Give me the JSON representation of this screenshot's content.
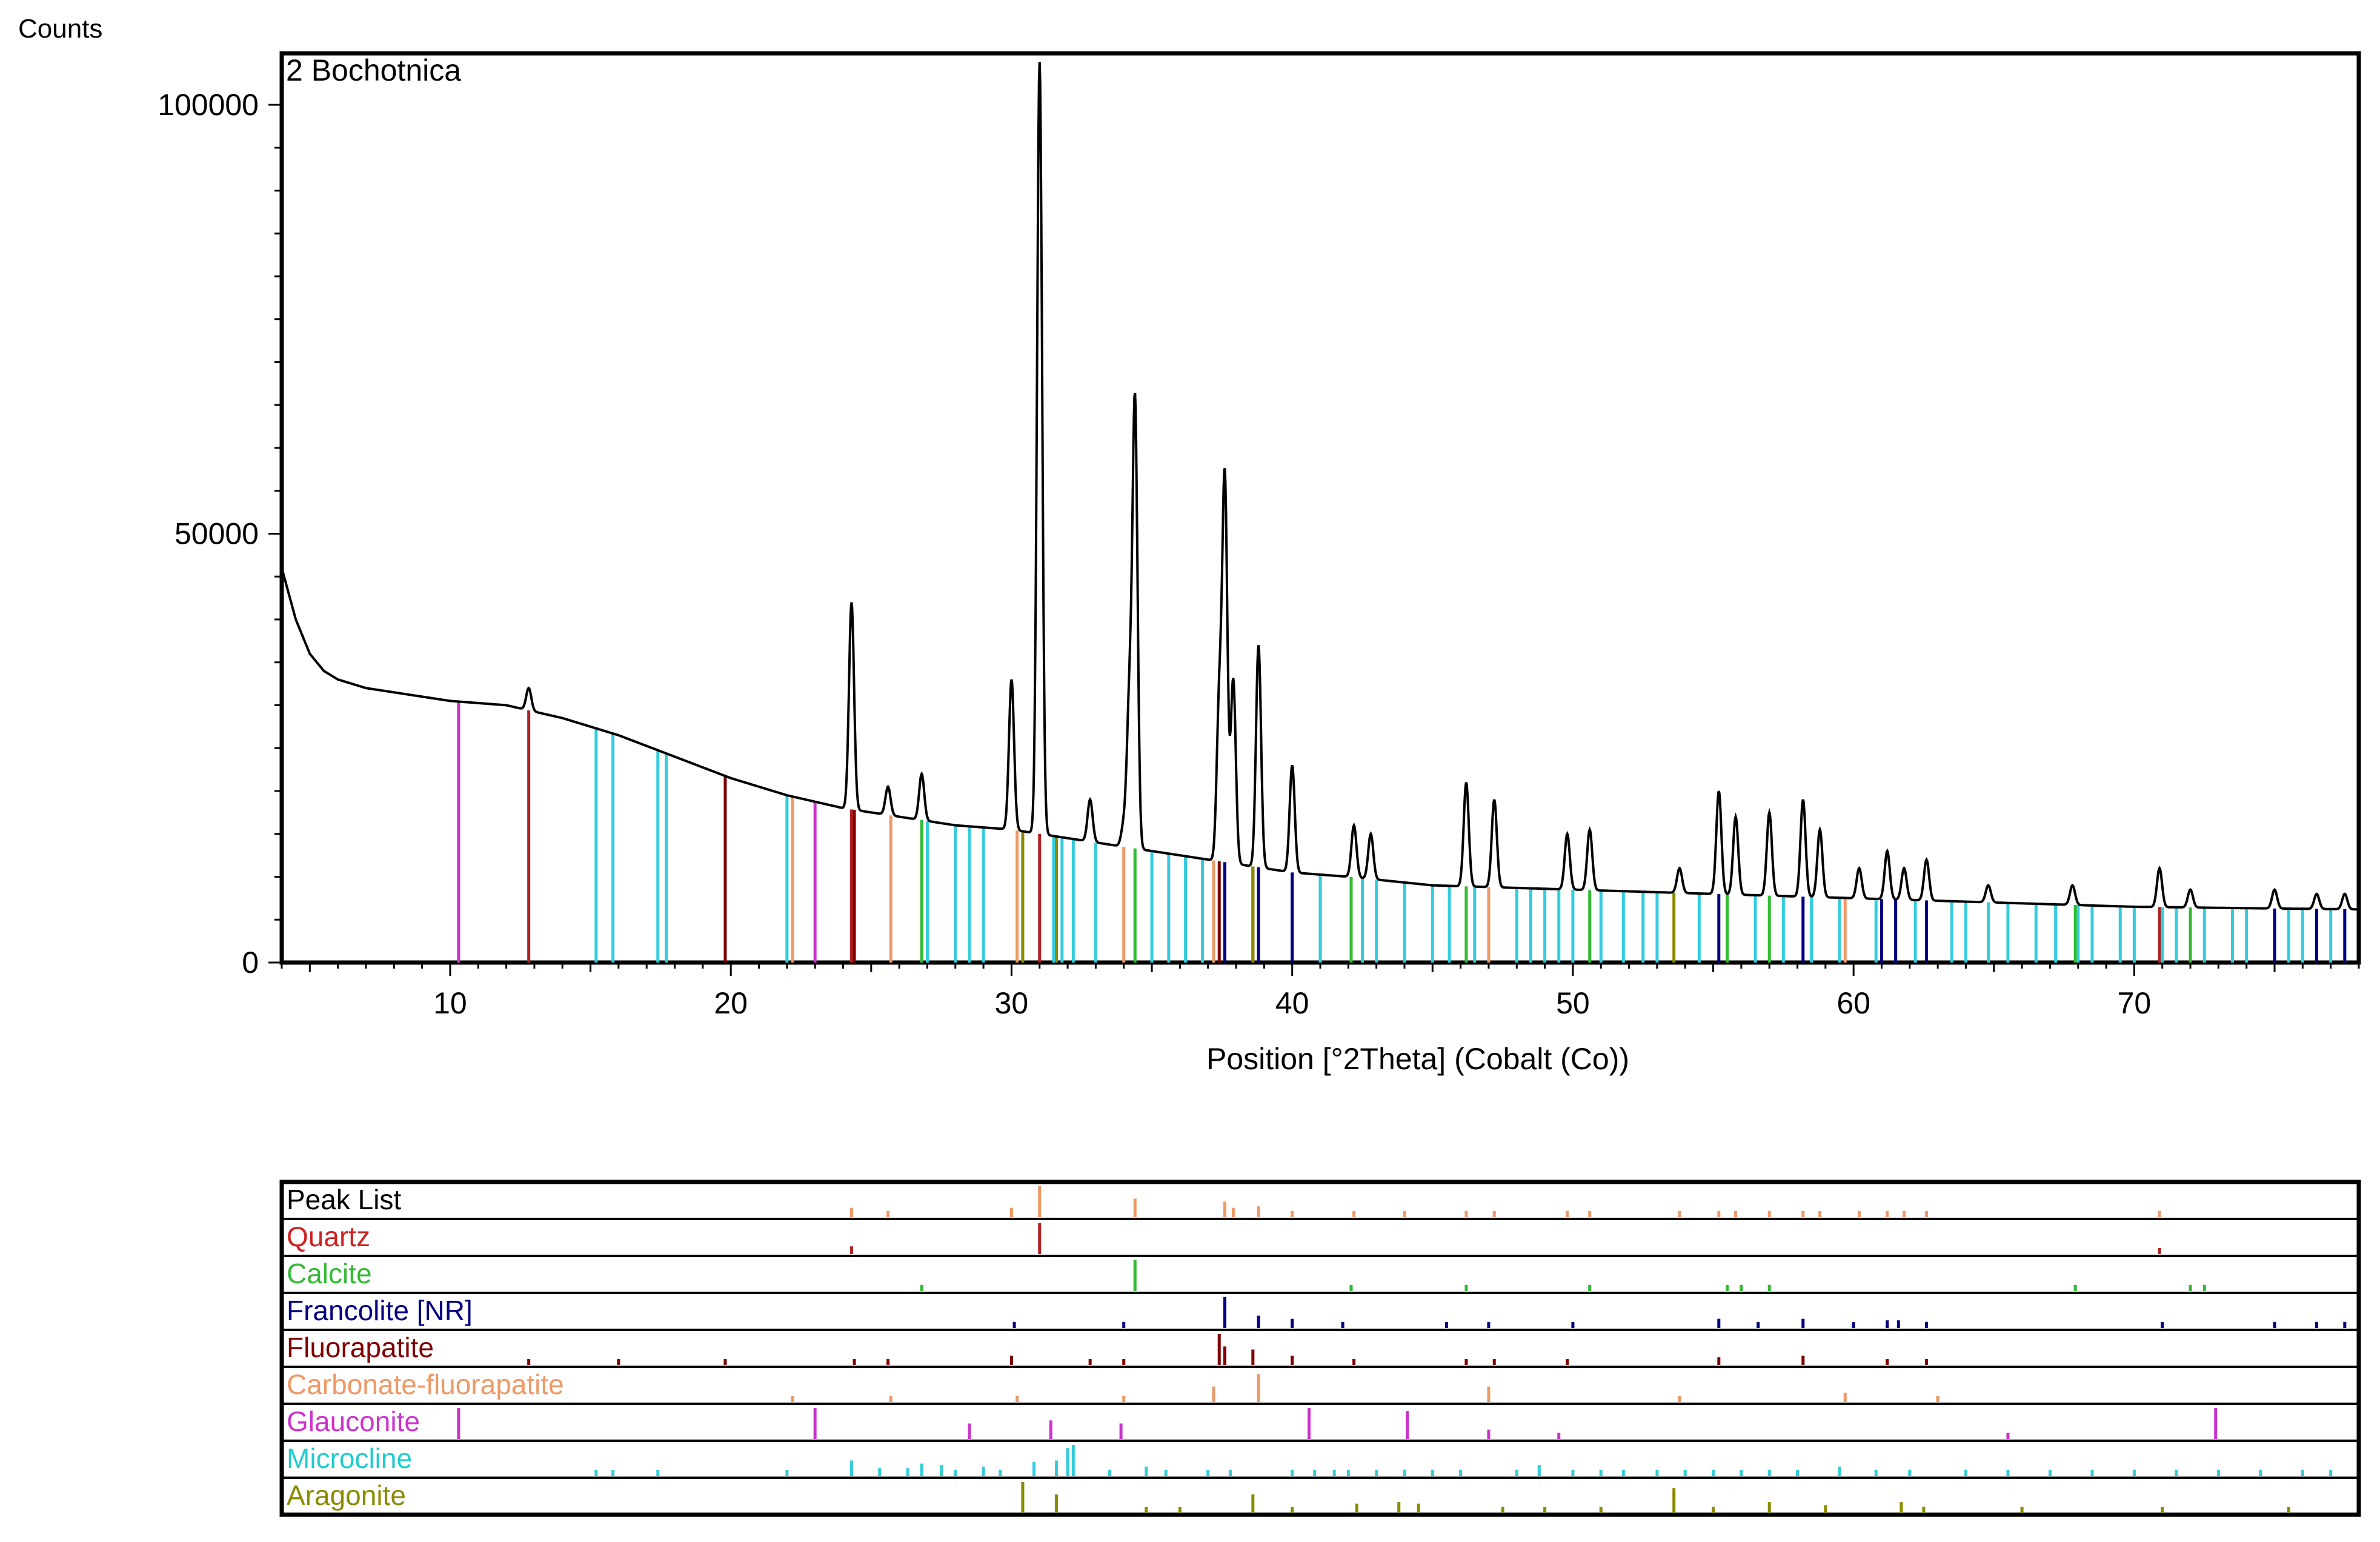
{
  "chart_data": {
    "type": "line",
    "title": "",
    "sample_name": "2 Bochotnica",
    "xlabel": "Position [°2Theta] (Cobalt (Co))",
    "ylabel": "Counts",
    "xlim": [
      4,
      78
    ],
    "ylim": [
      0,
      106000
    ],
    "x_ticks": [
      10,
      20,
      30,
      40,
      50,
      60,
      70
    ],
    "y_ticks": [
      0,
      50000,
      100000
    ],
    "pattern_color": "#000000",
    "pattern_baseline": [
      [
        4,
        46000
      ],
      [
        4.5,
        40000
      ],
      [
        5,
        36000
      ],
      [
        5.5,
        34000
      ],
      [
        6,
        33000
      ],
      [
        7,
        32000
      ],
      [
        8,
        31500
      ],
      [
        10,
        30500
      ],
      [
        12,
        30000
      ],
      [
        14,
        28500
      ],
      [
        16,
        26500
      ],
      [
        18,
        24000
      ],
      [
        20,
        21500
      ],
      [
        22,
        19500
      ],
      [
        24,
        18000
      ],
      [
        26,
        17000
      ],
      [
        28,
        16000
      ],
      [
        30,
        15500
      ],
      [
        32,
        14500
      ],
      [
        34,
        13500
      ],
      [
        36,
        12500
      ],
      [
        38,
        11500
      ],
      [
        40,
        10500
      ],
      [
        42,
        10000
      ],
      [
        45,
        9000
      ],
      [
        50,
        8500
      ],
      [
        55,
        8000
      ],
      [
        60,
        7500
      ],
      [
        65,
        7000
      ],
      [
        70,
        6500
      ],
      [
        75,
        6300
      ],
      [
        78,
        6200
      ]
    ],
    "pattern_peaks": [
      {
        "x": 12.8,
        "y": 32000
      },
      {
        "x": 24.3,
        "y": 42000
      },
      {
        "x": 25.6,
        "y": 20500
      },
      {
        "x": 26.8,
        "y": 22000
      },
      {
        "x": 30.0,
        "y": 33000
      },
      {
        "x": 31.0,
        "y": 105000
      },
      {
        "x": 32.8,
        "y": 19000
      },
      {
        "x": 34.0,
        "y": 16000
      },
      {
        "x": 34.2,
        "y": 30000
      },
      {
        "x": 34.4,
        "y": 65000
      },
      {
        "x": 37.4,
        "y": 30000
      },
      {
        "x": 37.6,
        "y": 56000
      },
      {
        "x": 37.9,
        "y": 33000
      },
      {
        "x": 38.8,
        "y": 37000
      },
      {
        "x": 40.0,
        "y": 23000
      },
      {
        "x": 42.2,
        "y": 16000
      },
      {
        "x": 42.8,
        "y": 15000
      },
      {
        "x": 46.2,
        "y": 21000
      },
      {
        "x": 47.2,
        "y": 19000
      },
      {
        "x": 49.8,
        "y": 15000
      },
      {
        "x": 50.6,
        "y": 15500
      },
      {
        "x": 53.8,
        "y": 11000
      },
      {
        "x": 55.2,
        "y": 20000
      },
      {
        "x": 55.8,
        "y": 17000
      },
      {
        "x": 57.0,
        "y": 17500
      },
      {
        "x": 58.2,
        "y": 19000
      },
      {
        "x": 58.8,
        "y": 15500
      },
      {
        "x": 60.2,
        "y": 11000
      },
      {
        "x": 61.2,
        "y": 13000
      },
      {
        "x": 61.8,
        "y": 11000
      },
      {
        "x": 62.6,
        "y": 12000
      },
      {
        "x": 64.8,
        "y": 9000
      },
      {
        "x": 67.8,
        "y": 9000
      },
      {
        "x": 70.9,
        "y": 11000
      },
      {
        "x": 72.0,
        "y": 8500
      },
      {
        "x": 75.0,
        "y": 8500
      },
      {
        "x": 76.5,
        "y": 8000
      },
      {
        "x": 77.5,
        "y": 8000
      }
    ],
    "main_sticks": [
      {
        "phase": "Glauconite",
        "color": "#cc33cc",
        "x": [
          10.3,
          23.0
        ]
      },
      {
        "phase": "Quartz",
        "color": "#b22222",
        "x": [
          12.8,
          24.3,
          31.0,
          70.9
        ]
      },
      {
        "phase": "Fluorapatite",
        "color": "#800000",
        "x": [
          19.8,
          24.4,
          37.4,
          38.6
        ]
      },
      {
        "phase": "Microcline",
        "color": "#33ccdd",
        "x": [
          15.2,
          15.8,
          17.4,
          17.7,
          22.0,
          26.8,
          27.0,
          28.0,
          28.5,
          29.0,
          31.5,
          31.8,
          32.2,
          33.0,
          35.0,
          35.6,
          36.2,
          36.8,
          41.0,
          42.5,
          43.0,
          44.0,
          45.0,
          45.6,
          46.5,
          48.0,
          48.5,
          49.0,
          49.5,
          50.0,
          51.0,
          51.8,
          52.5,
          53.0,
          54.5,
          55.5,
          56.5,
          57.5,
          58.5,
          59.5,
          60.8,
          61.5,
          62.2,
          63.5,
          64.0,
          64.8,
          65.5,
          66.5,
          67.2,
          68.0,
          68.5,
          69.5,
          70.0,
          71.0,
          71.5,
          72.5,
          73.5,
          74.0,
          75.5,
          76.0,
          77.0,
          77.5
        ]
      },
      {
        "phase": "Carbonate-fluorapatite",
        "color": "#ee9966",
        "x": [
          22.2,
          25.7,
          30.2,
          34.0,
          37.2,
          38.8,
          47.0,
          59.7
        ]
      },
      {
        "phase": "Calcite",
        "color": "#33bb33",
        "x": [
          26.8,
          34.4,
          42.1,
          46.2,
          50.6,
          55.5,
          57.0,
          67.9,
          72.0
        ]
      },
      {
        "phase": "Francolite [NR]",
        "color": "#000080",
        "x": [
          37.6,
          38.8,
          40.0,
          55.2,
          58.2,
          61.0,
          61.5,
          62.6,
          75.0,
          76.5,
          77.5
        ]
      },
      {
        "phase": "Aragonite",
        "color": "#8b8b00",
        "x": [
          30.4,
          31.6,
          38.6,
          53.6
        ]
      }
    ],
    "strips": [
      {
        "name": "Peak List",
        "color": "#000000",
        "stick_color": "#ee9966",
        "sticks": [
          [
            24.3,
            0.3
          ],
          [
            25.6,
            0.1
          ],
          [
            30.0,
            0.3
          ],
          [
            31.0,
            1.0
          ],
          [
            34.4,
            0.6
          ],
          [
            37.6,
            0.5
          ],
          [
            37.9,
            0.3
          ],
          [
            38.8,
            0.35
          ],
          [
            40.0,
            0.2
          ],
          [
            42.2,
            0.15
          ],
          [
            44.0,
            0.1
          ],
          [
            46.2,
            0.2
          ],
          [
            47.2,
            0.2
          ],
          [
            49.8,
            0.15
          ],
          [
            50.6,
            0.15
          ],
          [
            53.8,
            0.1
          ],
          [
            55.2,
            0.2
          ],
          [
            55.8,
            0.15
          ],
          [
            57.0,
            0.2
          ],
          [
            58.2,
            0.2
          ],
          [
            58.8,
            0.15
          ],
          [
            60.2,
            0.1
          ],
          [
            61.2,
            0.15
          ],
          [
            61.8,
            0.1
          ],
          [
            62.6,
            0.15
          ],
          [
            70.9,
            0.1
          ]
        ]
      },
      {
        "name": "Quartz",
        "color": "#cc2222",
        "stick_color": "#b22222",
        "sticks": [
          [
            24.3,
            0.25
          ],
          [
            31.0,
            1.0
          ],
          [
            70.9,
            0.1
          ]
        ]
      },
      {
        "name": "Calcite",
        "color": "#33bb33",
        "stick_color": "#33bb33",
        "sticks": [
          [
            26.8,
            0.1
          ],
          [
            34.4,
            1.0
          ],
          [
            42.1,
            0.12
          ],
          [
            46.2,
            0.12
          ],
          [
            50.6,
            0.15
          ],
          [
            55.5,
            0.1
          ],
          [
            56.0,
            0.1
          ],
          [
            57.0,
            0.2
          ],
          [
            67.9,
            0.1
          ],
          [
            72.0,
            0.1
          ],
          [
            72.5,
            0.1
          ]
        ]
      },
      {
        "name": "Francolite [NR]",
        "color": "#000080",
        "stick_color": "#000080",
        "sticks": [
          [
            30.1,
            0.2
          ],
          [
            34.0,
            0.2
          ],
          [
            37.6,
            1.0
          ],
          [
            38.8,
            0.4
          ],
          [
            40.0,
            0.3
          ],
          [
            41.8,
            0.1
          ],
          [
            45.5,
            0.1
          ],
          [
            47.0,
            0.15
          ],
          [
            50.0,
            0.15
          ],
          [
            55.2,
            0.3
          ],
          [
            56.6,
            0.1
          ],
          [
            58.2,
            0.3
          ],
          [
            60.0,
            0.15
          ],
          [
            61.2,
            0.25
          ],
          [
            61.6,
            0.25
          ],
          [
            62.6,
            0.2
          ],
          [
            71.0,
            0.1
          ],
          [
            75.0,
            0.2
          ],
          [
            76.5,
            0.2
          ],
          [
            77.5,
            0.2
          ]
        ]
      },
      {
        "name": "Fluorapatite",
        "color": "#800000",
        "stick_color": "#800000",
        "sticks": [
          [
            12.8,
            0.05
          ],
          [
            16.0,
            0.05
          ],
          [
            19.8,
            0.05
          ],
          [
            24.4,
            0.1
          ],
          [
            25.6,
            0.1
          ],
          [
            30.0,
            0.3
          ],
          [
            32.8,
            0.15
          ],
          [
            34.0,
            0.15
          ],
          [
            37.4,
            1.0
          ],
          [
            37.6,
            0.6
          ],
          [
            38.6,
            0.5
          ],
          [
            40.0,
            0.3
          ],
          [
            42.2,
            0.1
          ],
          [
            46.2,
            0.1
          ],
          [
            47.2,
            0.1
          ],
          [
            49.8,
            0.1
          ],
          [
            55.2,
            0.25
          ],
          [
            58.2,
            0.3
          ],
          [
            61.2,
            0.1
          ],
          [
            62.6,
            0.1
          ]
        ]
      },
      {
        "name": "Carbonate-fluorapatite",
        "color": "#ee9966",
        "stick_color": "#ee9966",
        "sticks": [
          [
            22.2,
            0.1
          ],
          [
            25.7,
            0.2
          ],
          [
            30.2,
            0.2
          ],
          [
            34.0,
            0.2
          ],
          [
            37.2,
            0.5
          ],
          [
            38.8,
            0.9
          ],
          [
            47.0,
            0.5
          ],
          [
            53.8,
            0.1
          ],
          [
            59.7,
            0.3
          ],
          [
            63.0,
            0.1
          ]
        ]
      },
      {
        "name": "Glauconite",
        "color": "#cc33cc",
        "stick_color": "#cc33cc",
        "sticks": [
          [
            10.3,
            1.0
          ],
          [
            23.0,
            1.0
          ],
          [
            28.5,
            0.5
          ],
          [
            31.4,
            0.6
          ],
          [
            33.9,
            0.5
          ],
          [
            40.6,
            1.0
          ],
          [
            44.1,
            0.9
          ],
          [
            47.0,
            0.3
          ],
          [
            49.5,
            0.2
          ],
          [
            65.5,
            0.2
          ],
          [
            72.9,
            1.0
          ]
        ]
      },
      {
        "name": "Microcline",
        "color": "#22cccc",
        "stick_color": "#33ccdd",
        "sticks": [
          [
            15.2,
            0.1
          ],
          [
            15.8,
            0.1
          ],
          [
            17.4,
            0.15
          ],
          [
            22.0,
            0.15
          ],
          [
            24.3,
            0.5
          ],
          [
            25.3,
            0.25
          ],
          [
            26.3,
            0.25
          ],
          [
            26.8,
            0.4
          ],
          [
            27.5,
            0.35
          ],
          [
            28.0,
            0.2
          ],
          [
            29.0,
            0.3
          ],
          [
            29.6,
            0.2
          ],
          [
            30.8,
            0.45
          ],
          [
            31.6,
            0.5
          ],
          [
            32.0,
            0.9
          ],
          [
            32.2,
            1.0
          ],
          [
            33.5,
            0.2
          ],
          [
            34.8,
            0.3
          ],
          [
            35.5,
            0.2
          ],
          [
            37.0,
            0.15
          ],
          [
            37.8,
            0.2
          ],
          [
            40.0,
            0.2
          ],
          [
            40.8,
            0.2
          ],
          [
            41.5,
            0.2
          ],
          [
            42.0,
            0.2
          ],
          [
            43.0,
            0.2
          ],
          [
            44.0,
            0.2
          ],
          [
            45.0,
            0.2
          ],
          [
            46.0,
            0.2
          ],
          [
            48.0,
            0.2
          ],
          [
            48.8,
            0.35
          ],
          [
            50.0,
            0.2
          ],
          [
            51.0,
            0.2
          ],
          [
            51.8,
            0.2
          ],
          [
            53.0,
            0.2
          ],
          [
            54.0,
            0.2
          ],
          [
            55.0,
            0.2
          ],
          [
            56.0,
            0.2
          ],
          [
            57.0,
            0.2
          ],
          [
            58.0,
            0.2
          ],
          [
            59.5,
            0.3
          ],
          [
            60.8,
            0.2
          ],
          [
            62.0,
            0.2
          ],
          [
            64.0,
            0.2
          ],
          [
            65.5,
            0.2
          ],
          [
            67.0,
            0.2
          ],
          [
            68.5,
            0.2
          ],
          [
            70.0,
            0.2
          ],
          [
            71.5,
            0.2
          ],
          [
            73.0,
            0.2
          ],
          [
            74.5,
            0.2
          ],
          [
            76.0,
            0.2
          ],
          [
            77.0,
            0.2
          ]
        ]
      },
      {
        "name": "Aragonite",
        "color": "#8b8b00",
        "stick_color": "#8b8b00",
        "sticks": [
          [
            30.4,
            1.0
          ],
          [
            31.6,
            0.6
          ],
          [
            34.8,
            0.1
          ],
          [
            36.0,
            0.1
          ],
          [
            38.6,
            0.6
          ],
          [
            40.0,
            0.1
          ],
          [
            42.3,
            0.3
          ],
          [
            43.8,
            0.35
          ],
          [
            44.5,
            0.3
          ],
          [
            47.5,
            0.1
          ],
          [
            49.0,
            0.1
          ],
          [
            51.0,
            0.1
          ],
          [
            53.6,
            0.8
          ],
          [
            55.0,
            0.1
          ],
          [
            57.0,
            0.35
          ],
          [
            59.0,
            0.25
          ],
          [
            61.7,
            0.35
          ],
          [
            62.5,
            0.2
          ],
          [
            66.0,
            0.1
          ],
          [
            71.0,
            0.1
          ],
          [
            75.5,
            0.1
          ]
        ]
      }
    ]
  }
}
